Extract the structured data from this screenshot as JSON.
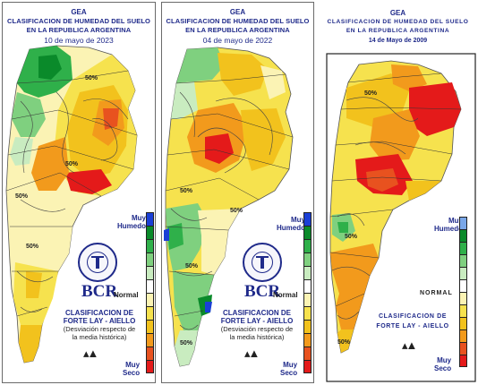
{
  "panels": [
    {
      "header": {
        "org": "GEA",
        "title": "CLASIFICACION DE HUMEDAD DEL SUELO",
        "subtitle": "EN LA REPUBLICA ARGENTINA",
        "date": "10 de mayo de 2023"
      },
      "legend": {
        "wet_label_1": "Muy",
        "wet_label_2": "Humedo",
        "normal_label": "Normal",
        "dry_label_1": "Muy",
        "dry_label_2": "Seco"
      },
      "logo_text": "BCR",
      "classification": {
        "line1": "CLASIFICACION DE",
        "line2": "FORTE LAY - AIELLO",
        "line3": "(Desviación respecto de",
        "line4": "la media histórica)"
      },
      "contours": [
        "50%",
        "50%",
        "50%",
        "50%"
      ]
    },
    {
      "header": {
        "org": "GEA",
        "title": "CLASIFICACION DE HUMEDAD DEL SUELO",
        "subtitle": "EN LA REPUBLICA ARGENTINA",
        "date": "04 de mayo de 2022"
      },
      "legend": {
        "wet_label_1": "Muy",
        "wet_label_2": "Humedo",
        "normal_label": "Normal",
        "dry_label_1": "Muy",
        "dry_label_2": "Seco"
      },
      "logo_text": "BCR",
      "classification": {
        "line1": "CLASIFICACION DE",
        "line2": "FORTE LAY - AIELLO",
        "line3": "(Desviación respecto de",
        "line4": "la media histórica)"
      },
      "contours": [
        "50%",
        "50%",
        "50%",
        "50%"
      ]
    },
    {
      "header": {
        "org": "GEA",
        "title": "CLASIFICACION DE HUMEDAD DEL SUELO",
        "subtitle": "EN LA REPUBLICA ARGENTINA",
        "date": "14 de Mayo de 2009"
      },
      "legend": {
        "wet_label_1": "Muy",
        "wet_label_2": "Humedo",
        "normal_label": "NORMAL",
        "dry_label_1": "Muy",
        "dry_label_2": "Seco"
      },
      "classification": {
        "line1": "CLASIFICACION DE",
        "line2": "FORTE LAY - AIELLO"
      },
      "contours": [
        "50%",
        "50%",
        "50%"
      ]
    }
  ],
  "legend_colors": [
    "#1a3fd6",
    "#0a8a2a",
    "#2fb04a",
    "#7fd07f",
    "#c9ecc0",
    "#ffffff",
    "#fbf3b4",
    "#f6e24e",
    "#f2c21d",
    "#f29a1c",
    "#e8521f",
    "#e41a1a"
  ],
  "legend_colors_2009": [
    "#7aa7e8",
    "#0a8a2a",
    "#2fb04a",
    "#7fd07f",
    "#c9ecc0",
    "#ffffff",
    "#fbf3b4",
    "#f6e24e",
    "#f2c21d",
    "#f29a1c",
    "#e8521f",
    "#e41a1a"
  ]
}
